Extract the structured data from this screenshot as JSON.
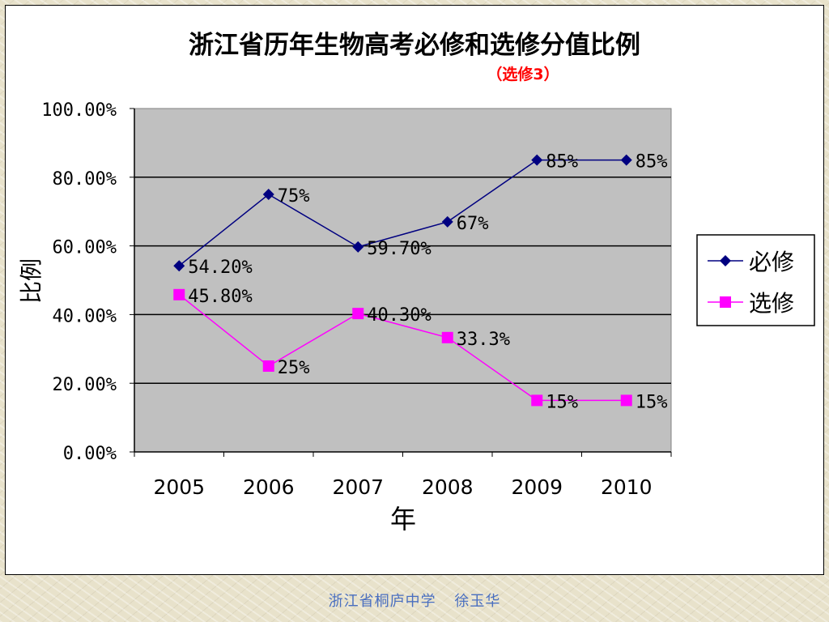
{
  "footer": {
    "school": "浙江省桐庐中学",
    "author": "徐玉华"
  },
  "chart_data": {
    "type": "line",
    "title": "浙江省历年生物高考必修和选修分值比例",
    "subtitle_paren_open": "（",
    "subtitle_main": "选修",
    "subtitle_number": "3",
    "subtitle_paren_close": "）",
    "xlabel": "年",
    "ylabel": "比例",
    "categories": [
      "2005",
      "2006",
      "2007",
      "2008",
      "2009",
      "2010"
    ],
    "ylim": [
      0,
      100
    ],
    "yticks": [
      "0.00%",
      "20.00%",
      "40.00%",
      "60.00%",
      "80.00%",
      "100.00%"
    ],
    "grid": true,
    "legend_position": "right",
    "series": [
      {
        "name": "必修",
        "marker": "diamond",
        "color": "#000080",
        "values": [
          54.2,
          75,
          59.7,
          67,
          85,
          85
        ],
        "labels": [
          "54.20%",
          "75%",
          "59.70%",
          "67%",
          "85%",
          "85%"
        ]
      },
      {
        "name": "选修",
        "marker": "square",
        "color": "#ff00ff",
        "values": [
          45.8,
          25,
          40.3,
          33.3,
          15,
          15
        ],
        "labels": [
          "45.80%",
          "25%",
          "40.30%",
          "33.3%",
          "15%",
          "15%"
        ]
      }
    ],
    "colors": {
      "plot_background": "#c0c0c0",
      "subtitle": "#ff0000"
    }
  }
}
